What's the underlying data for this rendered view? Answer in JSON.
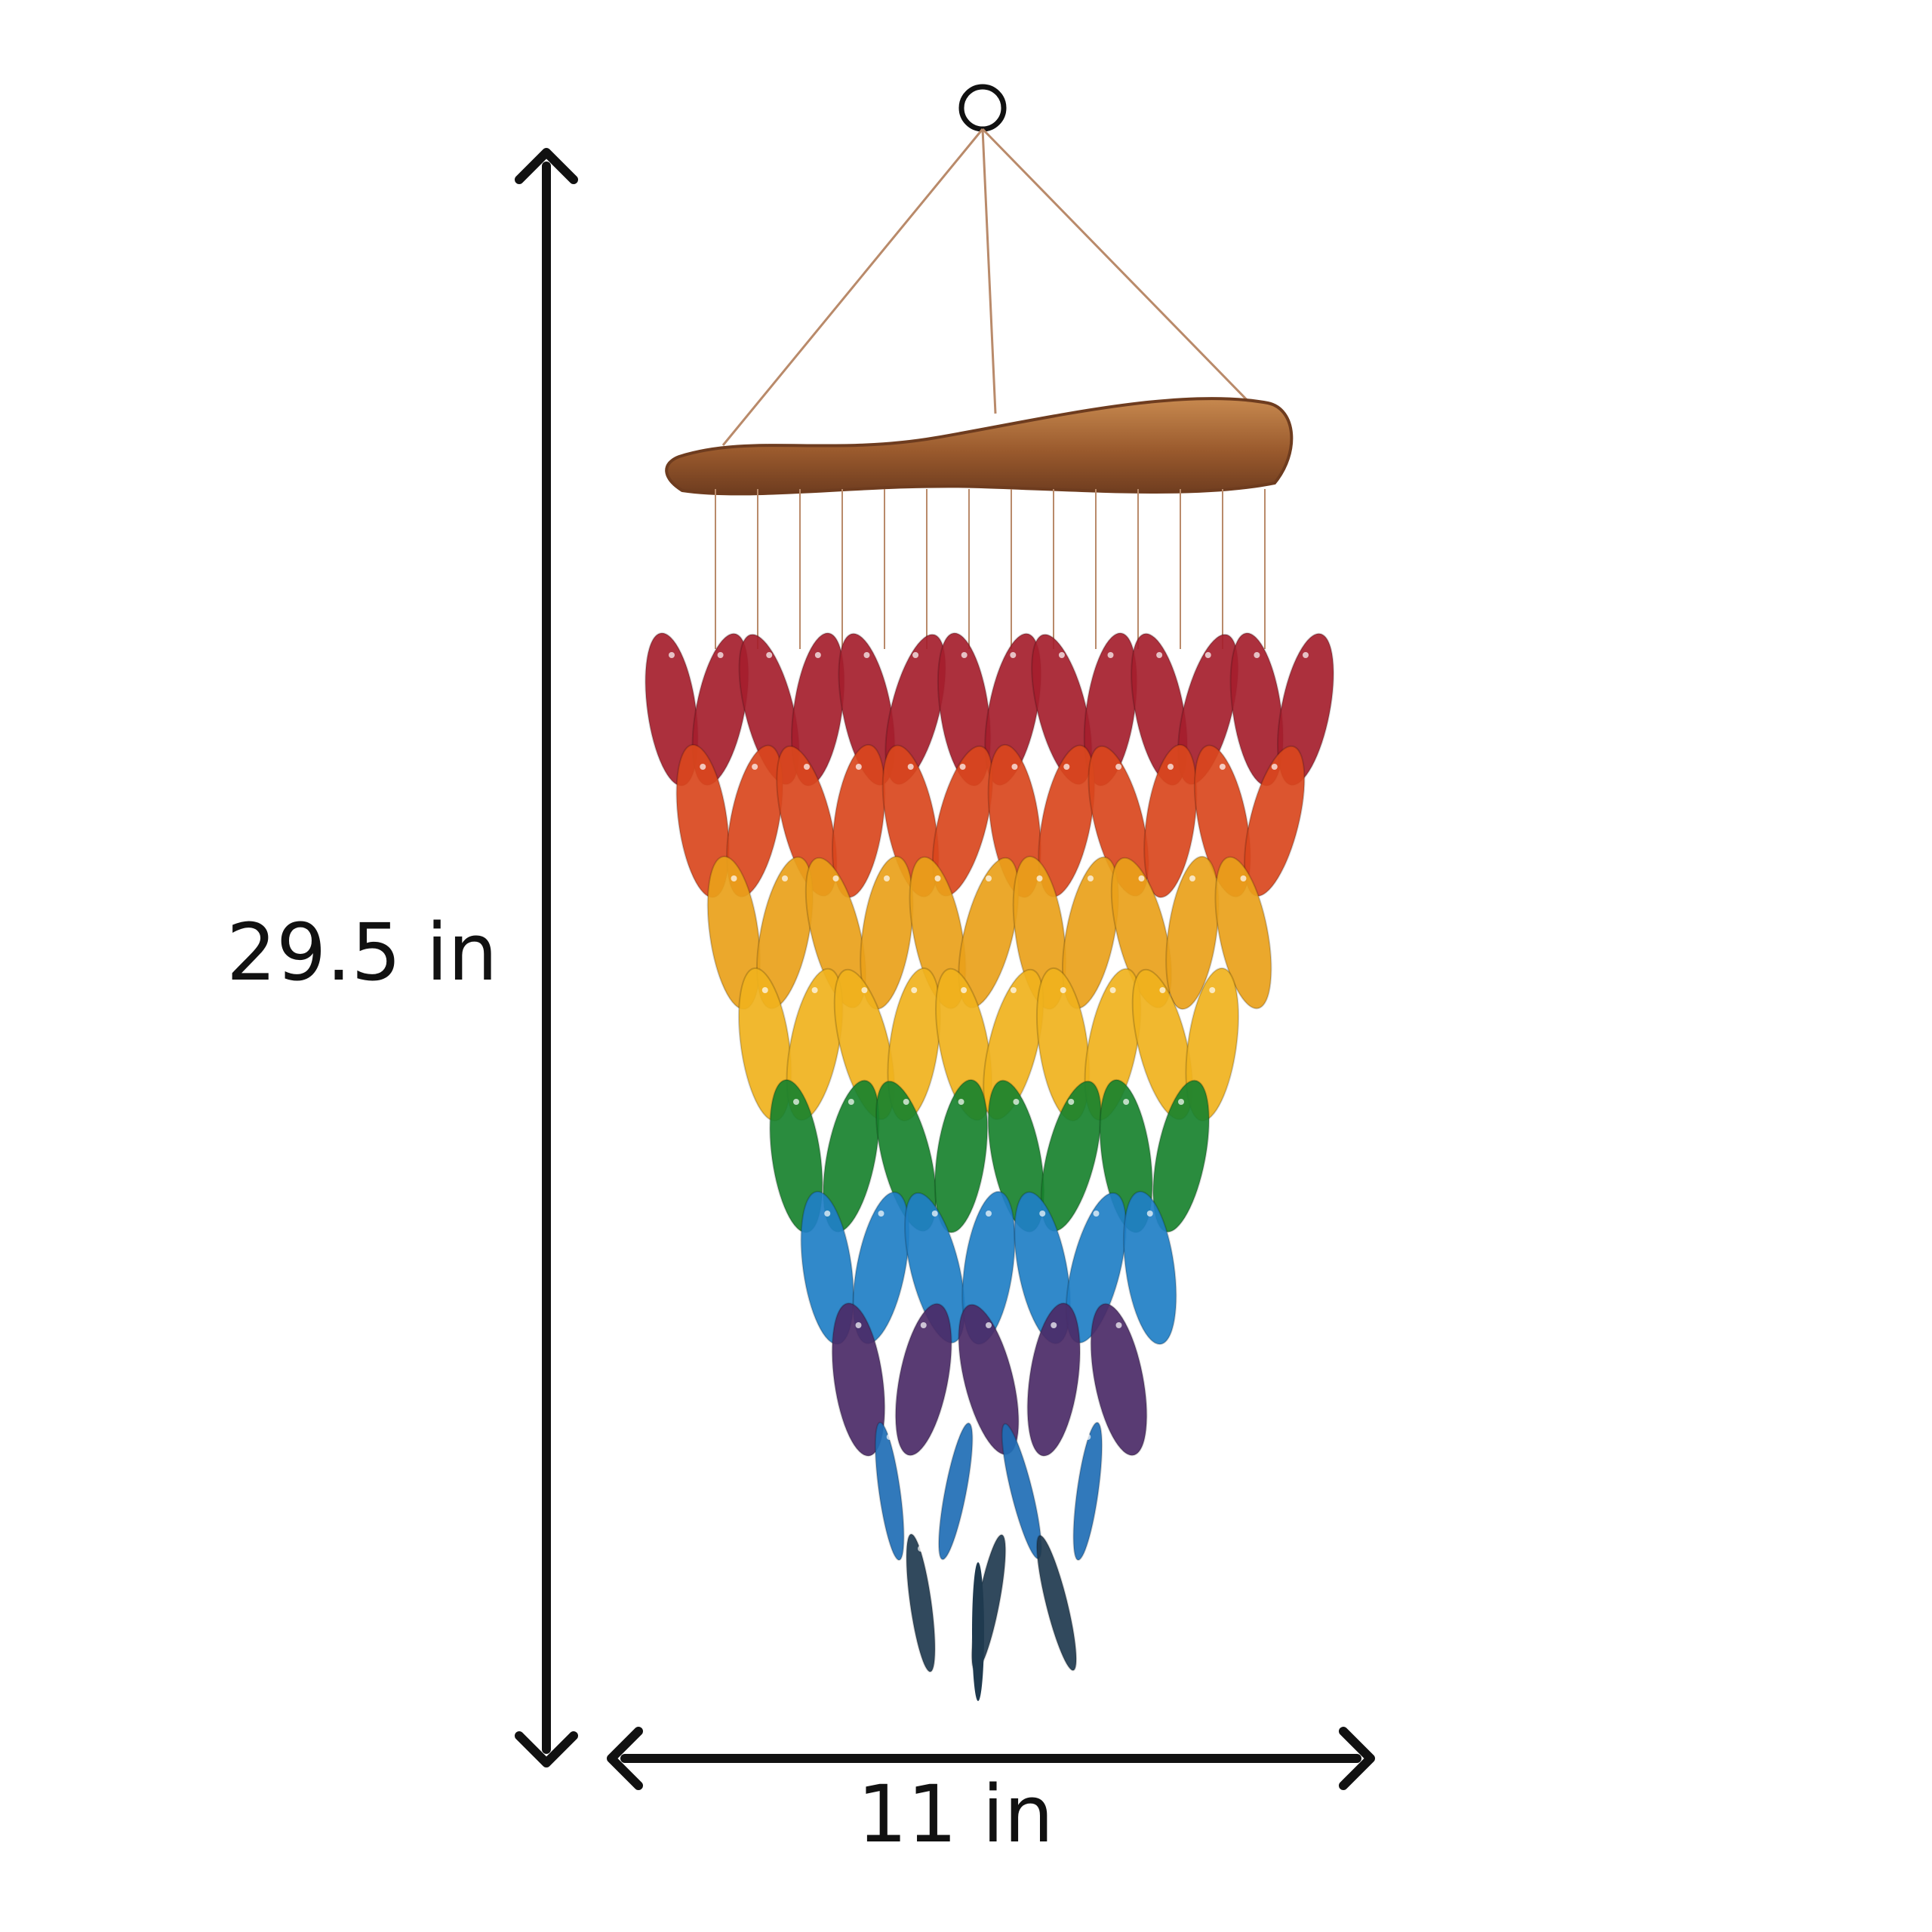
{
  "dimensions": {
    "height_text": "29.5 in",
    "width_text": "11 in"
  },
  "product": {
    "leaf_rows": [
      {
        "color": "#a51e2d",
        "count": 14
      },
      {
        "color": "#d9461d",
        "count": 12
      },
      {
        "color": "#e9a11a",
        "count": 11
      },
      {
        "color": "#f0b21d",
        "count": 10
      },
      {
        "color": "#18822e",
        "count": 8
      },
      {
        "color": "#1f7fc5",
        "count": 7
      },
      {
        "color": "#4b2a67",
        "count": 5
      },
      {
        "color": "#1f6eb5",
        "count": 4
      },
      {
        "color": "#1f3a4f",
        "count": 3
      }
    ],
    "colors": {
      "wood": "#9a5a2d",
      "wood_highlight": "#c7894f",
      "wire": "#b98a6a",
      "arrow": "#111111"
    }
  }
}
